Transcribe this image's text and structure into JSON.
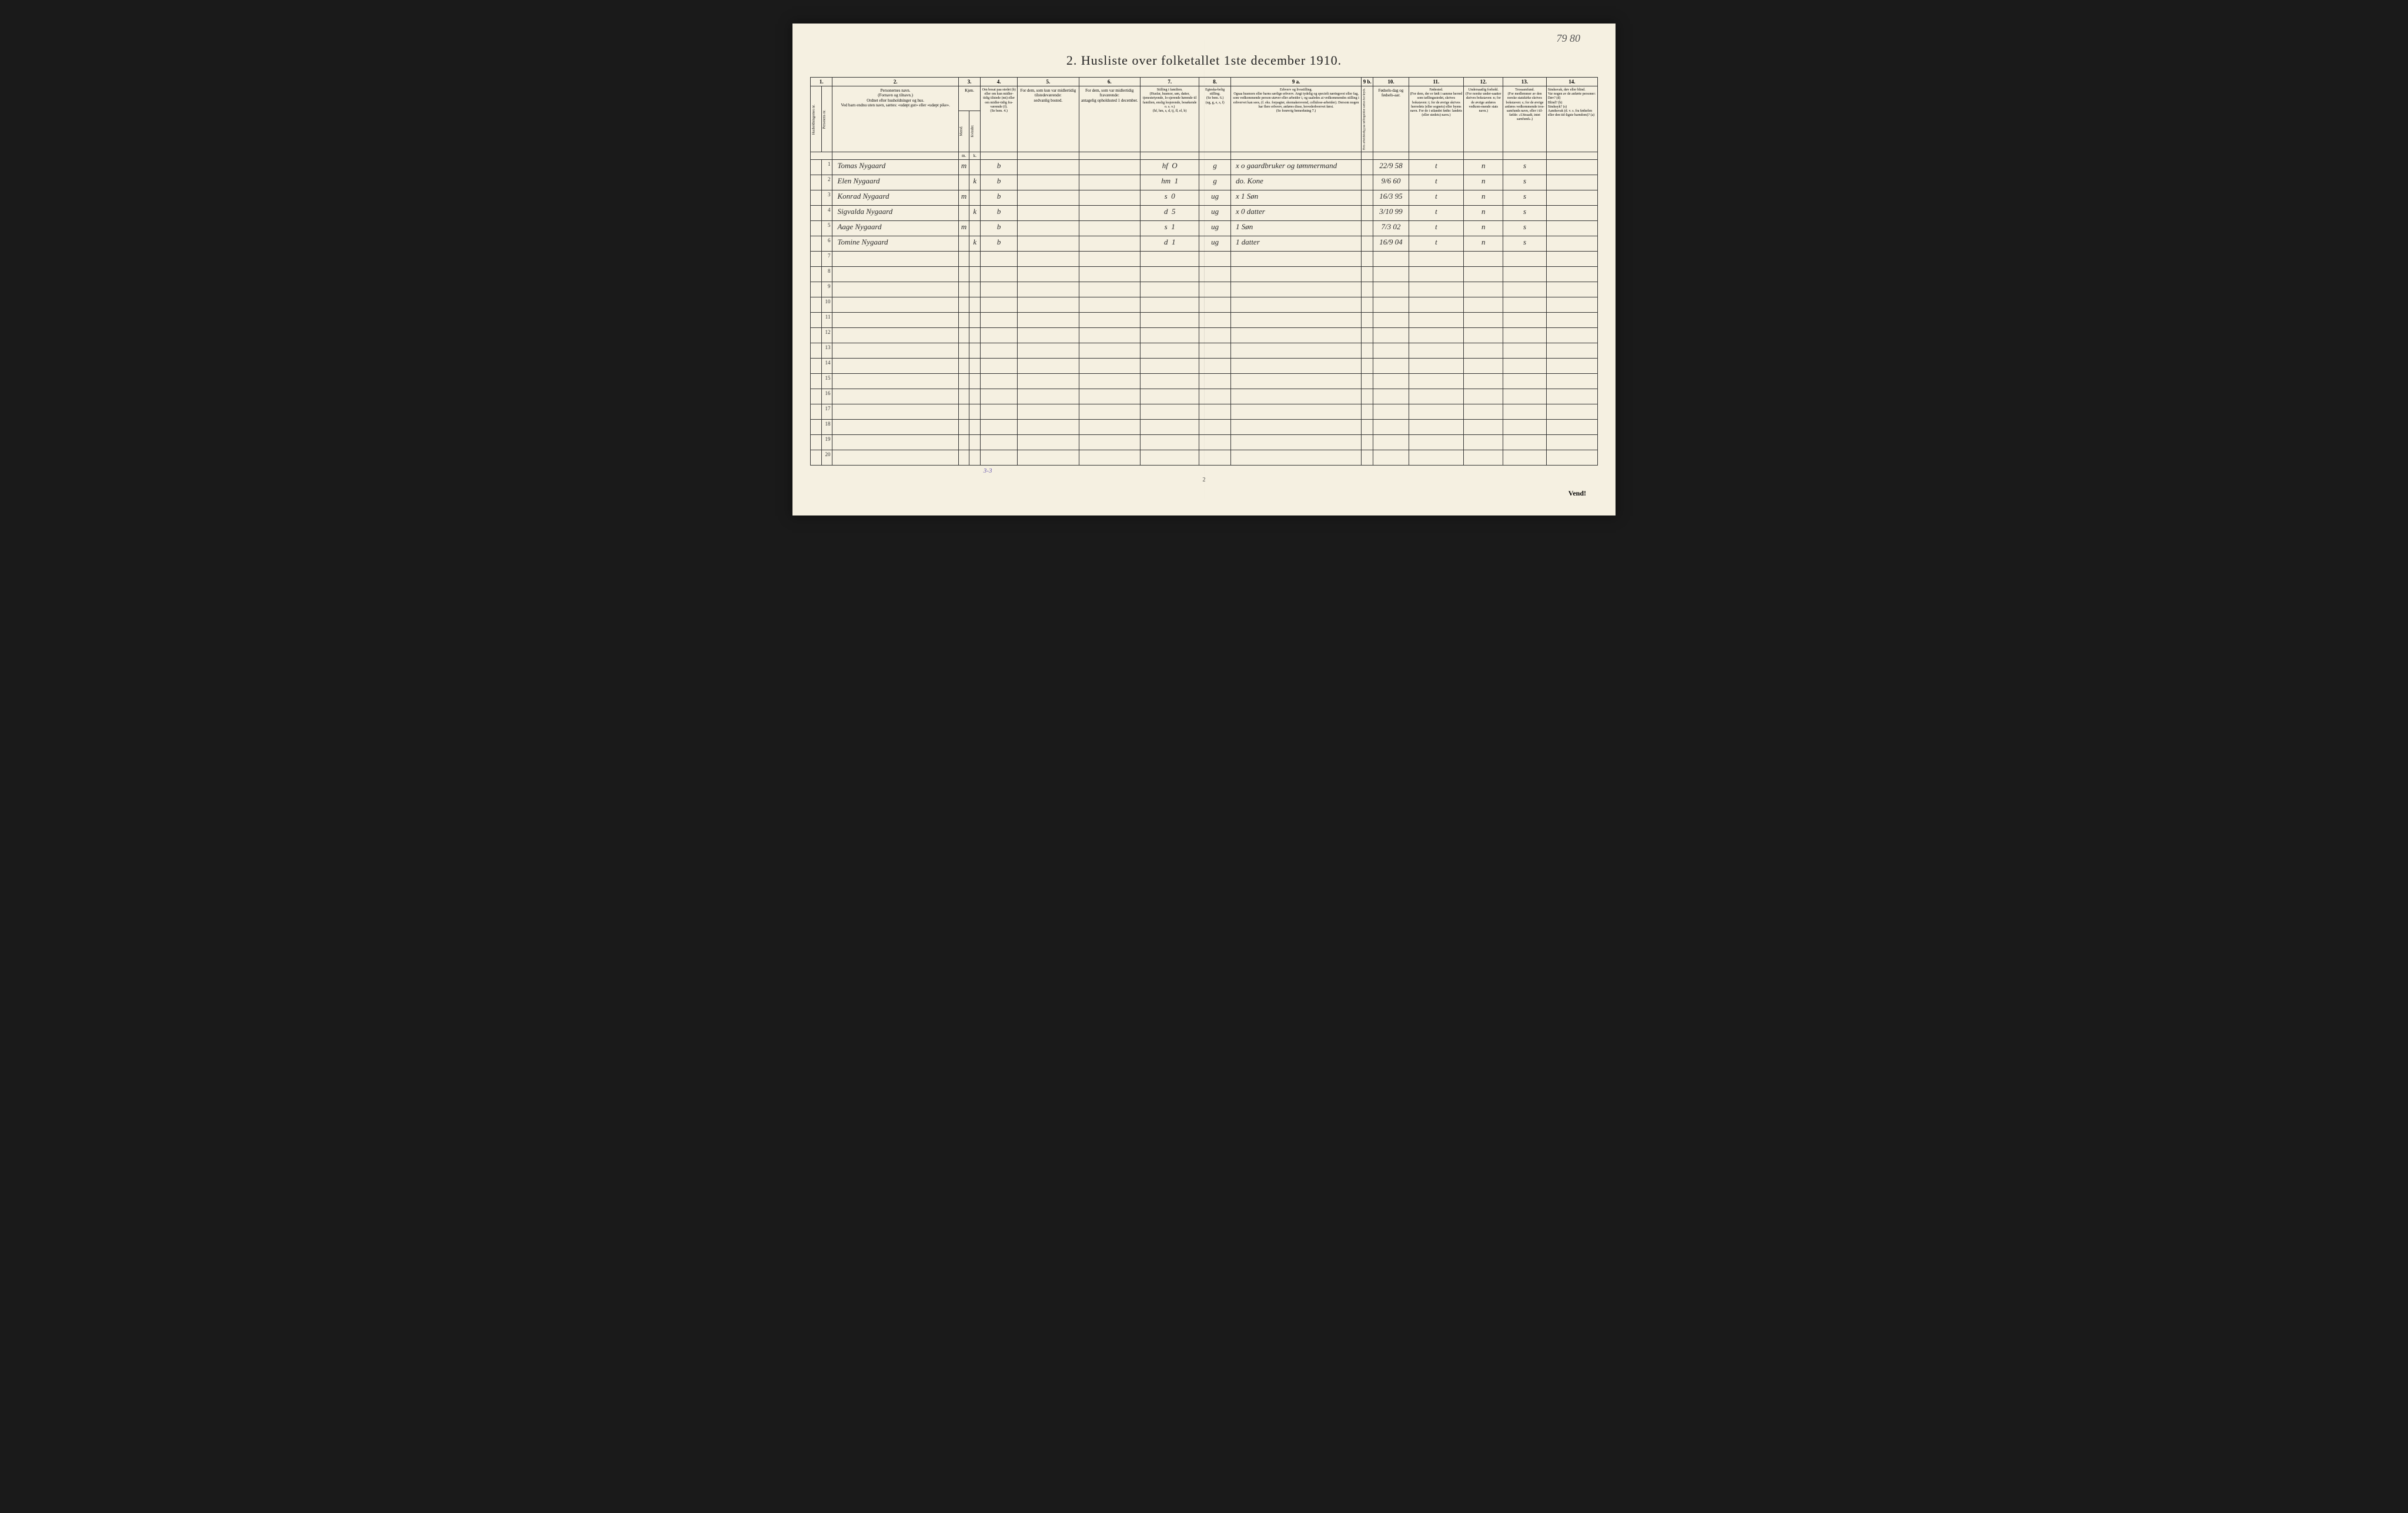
{
  "document": {
    "page_number_handwritten": "79 80",
    "title": "2.  Husliste over folketallet 1ste december 1910.",
    "page_num_bottom": "2",
    "vend_text": "Vend!",
    "bottom_annotation": "3-3"
  },
  "colors": {
    "paper": "#f5f0e1",
    "ink": "#222222",
    "border": "#333333",
    "handwriting": "#2a2a2a",
    "annotation": "#6a5ab0",
    "background": "#1a1a1a"
  },
  "column_numbers": [
    "1.",
    "2.",
    "3.",
    "4.",
    "5.",
    "6.",
    "7.",
    "8.",
    "9 a.",
    "9 b.",
    "10.",
    "11.",
    "12.",
    "13.",
    "14."
  ],
  "header_labels": {
    "col1a": "Husholdningernes nr.",
    "col1b": "Personens nr.",
    "col2": "Personernes navn.\n(Fornavn og tilnavn.)\nOrdnet efter husholdninger og hus.\nVed barn endnu uten navn, sættes: «udøpt gut» eller «udøpt pike».",
    "col3": "Kjøn.",
    "col3a": "Mænd.",
    "col3b": "Kvinder.",
    "col3sub_m": "m.",
    "col3sub_k": "k.",
    "col4": "Om bosat paa stedet (b) eller om kun midler-tidig tilstede (mt) eller om midler-tidig fra-værende (f).\n(Se bem. 4.)",
    "col5": "For dem, som kun var midlertidig tilstedeværende:\nsedvanlig bosted.",
    "col6": "For dem, som var midlertidig fraværende:\nantagelig opholdssted 1 december.",
    "col7": "Stilling i familien.\n(Husfar, husmor, søn, datter, tjenestetyende, lo-sjerende hørende til familien, enslig losjerende, besøkende o. s. v.)\n(hf, hm, s, d, tj, fl, el, b)",
    "col8": "Egteska-belig stilling.\n(Se bem. 6.)\n(ug, g, e, s, f)",
    "col9a": "Erhverv og livsstilling.\nOgsaa husmors eller barns særlige erhverv. Angi tydelig og specielt næringsvei eller fag, som vedkommende person utøver eller arbeider i, og saaledes at vedkommendes stilling i erhvervet kan sees, (f. eks. forpagter, skomakersvend, cellulose-arbeider). Dersom nogen har flere erhverv, anføres disse, hovederhvervet først.\n(Se forøvrig bemerkning 7.)",
    "col9b": "Hvis arbeidsledig paa tællingstiden sættes her kryds.",
    "col10": "Fødsels-dag og fødsels-aar.",
    "col11": "Fødested.\n(For dem, der er født i samme herred som tællingsstedet, skrives bokstaven: t; for de øvrige skrives herredets (eller sognets) eller byens navn. For de i utlandet fødte: landets (eller stedets) navn.)",
    "col12": "Undersaatlig forhold.\n(For norske under-saatter skrives bokstaven: n; for de øvrige anføres vedkom-mende stats navn.)",
    "col13": "Trossamfund.\n(For medlemmer av den norske statskirke skrives bokstaven: s; for de øvrige anføres vedkommende tros-samfunds navn, eller i til-fælde: «Uttraadt, intet samfund».)",
    "col14": "Sindssvak, døv eller blind.\nVar nogen av de anførte personer:\nDøv?        (d)\nBlind?      (b)\nSindssyk?   (s)\nAandssvak (d. v. s. fra fødselen eller den tid-ligste barndom)?  (a)"
  },
  "rows": [
    {
      "num": "1",
      "name": "Tomas Nygaard",
      "m": "m",
      "k": "",
      "col4": "b",
      "col5": "",
      "col6": "",
      "col7": "hf",
      "col7b": "O",
      "col8": "g",
      "col9a": "x o  gaardbruker og tømmermand",
      "col9b": "",
      "col10": "22/9 58",
      "col11": "t",
      "col12": "n",
      "col13": "s",
      "col14": ""
    },
    {
      "num": "2",
      "name": "Elen Nygaard",
      "m": "",
      "k": "k",
      "col4": "b",
      "col5": "",
      "col6": "",
      "col7": "hm",
      "col7b": "1",
      "col8": "g",
      "col9a": "do. Kone",
      "col9b": "",
      "col10": "9/6 60",
      "col11": "t",
      "col12": "n",
      "col13": "s",
      "col14": ""
    },
    {
      "num": "3",
      "name": "Konrad Nygaard",
      "m": "m",
      "k": "",
      "col4": "b",
      "col5": "",
      "col6": "",
      "col7": "s",
      "col7b": "0",
      "col8": "ug",
      "col9a": "x 1  Søn",
      "col9b": "",
      "col10": "16/3 95",
      "col11": "t",
      "col12": "n",
      "col13": "s",
      "col14": ""
    },
    {
      "num": "4",
      "name": "Sigvalda Nygaard",
      "m": "",
      "k": "k",
      "col4": "b",
      "col5": "",
      "col6": "",
      "col7": "d",
      "col7b": "5",
      "col8": "ug",
      "col9a": "x 0  datter",
      "col9b": "",
      "col10": "3/10 99",
      "col11": "t",
      "col12": "n",
      "col13": "s",
      "col14": ""
    },
    {
      "num": "5",
      "name": "Aage Nygaard",
      "m": "m",
      "k": "",
      "col4": "b",
      "col5": "",
      "col6": "",
      "col7": "s",
      "col7b": "1",
      "col8": "ug",
      "col9a": "1   Søn",
      "col9b": "",
      "col10": "7/3 02",
      "col11": "t",
      "col12": "n",
      "col13": "s",
      "col14": ""
    },
    {
      "num": "6",
      "name": "Tomine Nygaard",
      "m": "",
      "k": "k",
      "col4": "b",
      "col5": "",
      "col6": "",
      "col7": "d",
      "col7b": "1",
      "col8": "ug",
      "col9a": "1   datter",
      "col9b": "",
      "col10": "16/9 04",
      "col11": "t",
      "col12": "n",
      "col13": "s",
      "col14": ""
    },
    {
      "num": "7",
      "name": "",
      "m": "",
      "k": "",
      "col4": "",
      "col5": "",
      "col6": "",
      "col7": "",
      "col7b": "",
      "col8": "",
      "col9a": "",
      "col9b": "",
      "col10": "",
      "col11": "",
      "col12": "",
      "col13": "",
      "col14": ""
    },
    {
      "num": "8",
      "name": "",
      "m": "",
      "k": "",
      "col4": "",
      "col5": "",
      "col6": "",
      "col7": "",
      "col7b": "",
      "col8": "",
      "col9a": "",
      "col9b": "",
      "col10": "",
      "col11": "",
      "col12": "",
      "col13": "",
      "col14": ""
    },
    {
      "num": "9",
      "name": "",
      "m": "",
      "k": "",
      "col4": "",
      "col5": "",
      "col6": "",
      "col7": "",
      "col7b": "",
      "col8": "",
      "col9a": "",
      "col9b": "",
      "col10": "",
      "col11": "",
      "col12": "",
      "col13": "",
      "col14": ""
    },
    {
      "num": "10",
      "name": "",
      "m": "",
      "k": "",
      "col4": "",
      "col5": "",
      "col6": "",
      "col7": "",
      "col7b": "",
      "col8": "",
      "col9a": "",
      "col9b": "",
      "col10": "",
      "col11": "",
      "col12": "",
      "col13": "",
      "col14": ""
    },
    {
      "num": "11",
      "name": "",
      "m": "",
      "k": "",
      "col4": "",
      "col5": "",
      "col6": "",
      "col7": "",
      "col7b": "",
      "col8": "",
      "col9a": "",
      "col9b": "",
      "col10": "",
      "col11": "",
      "col12": "",
      "col13": "",
      "col14": ""
    },
    {
      "num": "12",
      "name": "",
      "m": "",
      "k": "",
      "col4": "",
      "col5": "",
      "col6": "",
      "col7": "",
      "col7b": "",
      "col8": "",
      "col9a": "",
      "col9b": "",
      "col10": "",
      "col11": "",
      "col12": "",
      "col13": "",
      "col14": ""
    },
    {
      "num": "13",
      "name": "",
      "m": "",
      "k": "",
      "col4": "",
      "col5": "",
      "col6": "",
      "col7": "",
      "col7b": "",
      "col8": "",
      "col9a": "",
      "col9b": "",
      "col10": "",
      "col11": "",
      "col12": "",
      "col13": "",
      "col14": ""
    },
    {
      "num": "14",
      "name": "",
      "m": "",
      "k": "",
      "col4": "",
      "col5": "",
      "col6": "",
      "col7": "",
      "col7b": "",
      "col8": "",
      "col9a": "",
      "col9b": "",
      "col10": "",
      "col11": "",
      "col12": "",
      "col13": "",
      "col14": ""
    },
    {
      "num": "15",
      "name": "",
      "m": "",
      "k": "",
      "col4": "",
      "col5": "",
      "col6": "",
      "col7": "",
      "col7b": "",
      "col8": "",
      "col9a": "",
      "col9b": "",
      "col10": "",
      "col11": "",
      "col12": "",
      "col13": "",
      "col14": ""
    },
    {
      "num": "16",
      "name": "",
      "m": "",
      "k": "",
      "col4": "",
      "col5": "",
      "col6": "",
      "col7": "",
      "col7b": "",
      "col8": "",
      "col9a": "",
      "col9b": "",
      "col10": "",
      "col11": "",
      "col12": "",
      "col13": "",
      "col14": ""
    },
    {
      "num": "17",
      "name": "",
      "m": "",
      "k": "",
      "col4": "",
      "col5": "",
      "col6": "",
      "col7": "",
      "col7b": "",
      "col8": "",
      "col9a": "",
      "col9b": "",
      "col10": "",
      "col11": "",
      "col12": "",
      "col13": "",
      "col14": ""
    },
    {
      "num": "18",
      "name": "",
      "m": "",
      "k": "",
      "col4": "",
      "col5": "",
      "col6": "",
      "col7": "",
      "col7b": "",
      "col8": "",
      "col9a": "",
      "col9b": "",
      "col10": "",
      "col11": "",
      "col12": "",
      "col13": "",
      "col14": ""
    },
    {
      "num": "19",
      "name": "",
      "m": "",
      "k": "",
      "col4": "",
      "col5": "",
      "col6": "",
      "col7": "",
      "col7b": "",
      "col8": "",
      "col9a": "",
      "col9b": "",
      "col10": "",
      "col11": "",
      "col12": "",
      "col13": "",
      "col14": ""
    },
    {
      "num": "20",
      "name": "",
      "m": "",
      "k": "",
      "col4": "",
      "col5": "",
      "col6": "",
      "col7": "",
      "col7b": "",
      "col8": "",
      "col9a": "",
      "col9b": "",
      "col10": "",
      "col11": "",
      "col12": "",
      "col13": "",
      "col14": ""
    }
  ],
  "column_widths_pct": [
    1.4,
    1.4,
    16,
    1.4,
    1.4,
    4.7,
    7.8,
    7.8,
    7.5,
    4.0,
    16.6,
    1.5,
    4.5,
    7.0,
    5.0,
    5.5,
    6.5
  ]
}
